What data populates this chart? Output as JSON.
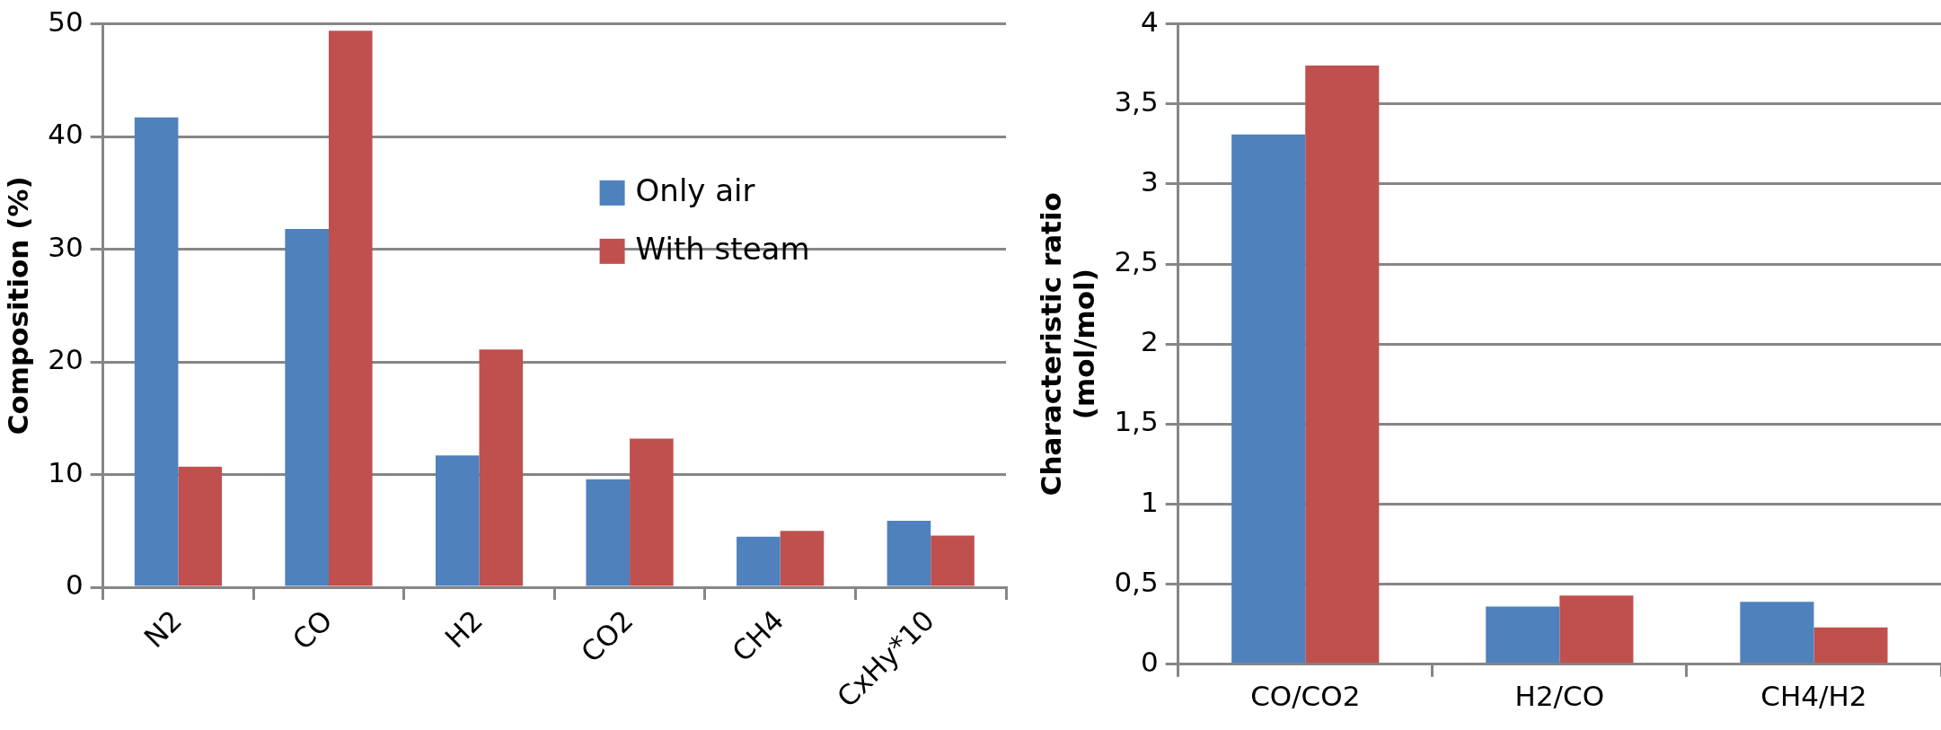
{
  "chart_data": [
    {
      "type": "bar",
      "ylabel": "Composition (%)",
      "categories": [
        "N2",
        "CO",
        "H2",
        "CO2",
        "CH4",
        "CxHy*10"
      ],
      "series": [
        {
          "name": "Only air",
          "color": "#4f81bd",
          "values": [
            41.7,
            31.8,
            11.7,
            9.6,
            4.5,
            5.9
          ]
        },
        {
          "name": "With steam",
          "color": "#c0504d",
          "values": [
            10.7,
            49.4,
            21.1,
            13.2,
            5.0,
            4.6
          ]
        }
      ],
      "ylim": [
        0,
        50
      ],
      "yticks": [
        0,
        10,
        20,
        30,
        40,
        50
      ],
      "grid": "y",
      "legend": "right"
    },
    {
      "type": "bar",
      "ylabel": "Characteristic ratio\n(mol/mol)",
      "categories": [
        "CO/CO2",
        "H2/CO",
        "CH4/H2"
      ],
      "series": [
        {
          "color": "#4f81bd",
          "values": [
            3.31,
            0.36,
            0.39
          ]
        },
        {
          "color": "#c0504d",
          "values": [
            3.74,
            0.43,
            0.23
          ]
        }
      ],
      "ylim": [
        0,
        4
      ],
      "yticks": [
        0,
        {
          "value": 0.5,
          "label": "0,5"
        },
        1,
        {
          "value": 1.5,
          "label": "1,5"
        },
        2,
        {
          "value": 2.5,
          "label": "2,5"
        },
        3,
        {
          "value": 3.5,
          "label": "3,5"
        },
        4
      ],
      "grid": "y"
    }
  ]
}
